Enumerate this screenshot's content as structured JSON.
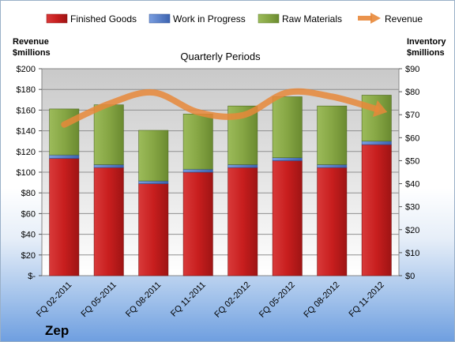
{
  "chart_data": {
    "type": "bar",
    "title": "Quarterly Periods",
    "company": "Zep",
    "left_axis_header": [
      "Revenue",
      "$millions"
    ],
    "right_axis_header": [
      "Inventory",
      "$millions"
    ],
    "categories": [
      "FQ 02-2011",
      "FQ 05-2011",
      "FQ 08-2011",
      "FQ 11-2011",
      "FQ 02-2012",
      "FQ 05-2012",
      "FQ 08-2012",
      "FQ 11-2012"
    ],
    "series": [
      {
        "name": "Finished Goods",
        "axis": "right",
        "stacked": true,
        "color": "#cc2222",
        "values": [
          51,
          47,
          40,
          45,
          47,
          50,
          47,
          57
        ]
      },
      {
        "name": "Work in Progress",
        "axis": "right",
        "stacked": true,
        "color": "#4a78c8",
        "values": [
          1.5,
          1.3,
          1.2,
          1.3,
          1.3,
          1.3,
          1.3,
          1.5
        ]
      },
      {
        "name": "Raw Materials",
        "axis": "right",
        "stacked": true,
        "color": "#8aab46",
        "values": [
          20,
          26,
          22,
          24,
          25.5,
          26.5,
          25.5,
          20
        ]
      },
      {
        "name": "Revenue",
        "axis": "left",
        "type": "line",
        "color": "#e8883a",
        "values": [
          146,
          166,
          177,
          158,
          155,
          177,
          173,
          161
        ]
      }
    ],
    "left_axis": {
      "min": 0,
      "max": 200,
      "step": 20,
      "tick_labels": [
        "$-",
        "$20",
        "$40",
        "$60",
        "$80",
        "$100",
        "$120",
        "$140",
        "$160",
        "$180",
        "$200"
      ]
    },
    "right_axis": {
      "min": 0,
      "max": 90,
      "step": 10,
      "tick_labels": [
        "$0",
        "$10",
        "$20",
        "$30",
        "$40",
        "$50",
        "$60",
        "$70",
        "$80",
        "$90"
      ]
    },
    "legend_position": "top",
    "grid": true
  }
}
